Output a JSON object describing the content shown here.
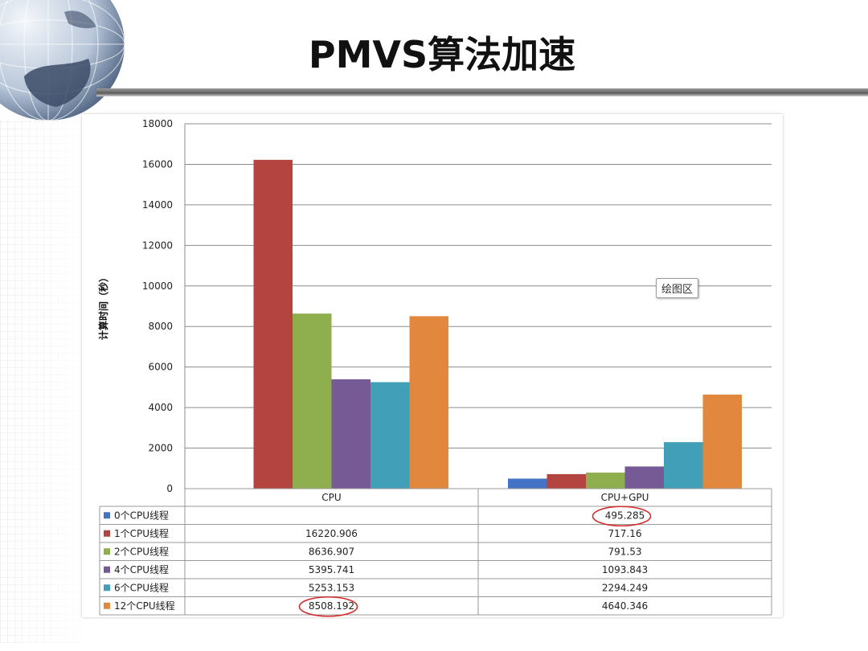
{
  "slide": {
    "title": "PMVS算法加速"
  },
  "tooltip": "绘图区",
  "chart_data": {
    "type": "bar",
    "ylabel": "计算时间（秒）",
    "ylim": [
      0,
      18000
    ],
    "yticks": [
      0,
      2000,
      4000,
      6000,
      8000,
      10000,
      12000,
      14000,
      16000,
      18000
    ],
    "grid": true,
    "legend": "data-table",
    "categories": [
      "CPU",
      "CPU+GPU"
    ],
    "series": [
      {
        "name": "0个CPU线程",
        "color": "#4472C4",
        "values": [
          null,
          495.285
        ],
        "labels": [
          "",
          "495.285"
        ]
      },
      {
        "name": "1个CPU线程",
        "color": "#B4443F",
        "values": [
          16220.906,
          717.16
        ],
        "labels": [
          "16220.906",
          "717.16"
        ]
      },
      {
        "name": "2个CPU线程",
        "color": "#8FAF4E",
        "values": [
          8636.907,
          791.53
        ],
        "labels": [
          "8636.907",
          "791.53"
        ]
      },
      {
        "name": "4个CPU线程",
        "color": "#765A96",
        "values": [
          5395.741,
          1093.843
        ],
        "labels": [
          "5395.741",
          "1093.843"
        ]
      },
      {
        "name": "6个CPU线程",
        "color": "#41A0B7",
        "values": [
          5253.153,
          2294.249
        ],
        "labels": [
          "5253.153",
          "2294.249"
        ]
      },
      {
        "name": "12个CPU线程",
        "color": "#E2883E",
        "values": [
          8508.192,
          4640.346
        ],
        "labels": [
          "8508.192",
          "4640.346"
        ]
      }
    ],
    "highlighted": [
      {
        "series": 0,
        "category": 1
      },
      {
        "series": 5,
        "category": 0
      }
    ],
    "highlight_color": "#D42A2A"
  }
}
